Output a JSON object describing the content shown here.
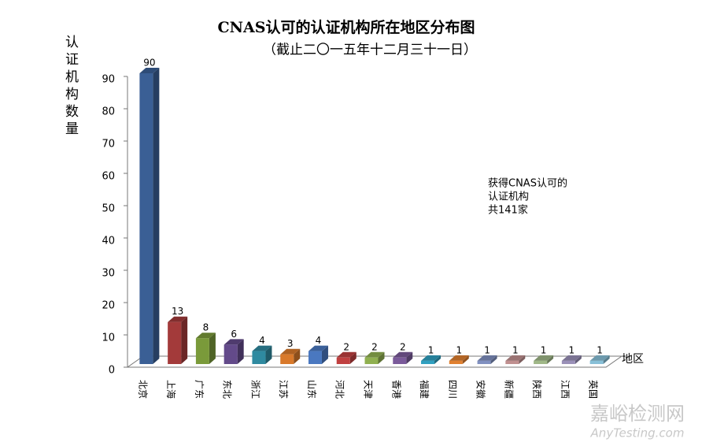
{
  "chart_data": {
    "type": "bar3d",
    "title": "CNAS认可的认证机构所在地区分布图",
    "subtitle": "（截止二〇一五年十二月三十一日）",
    "y_label": "认证机构数量",
    "x_label": "地区",
    "annotation": [
      "获得CNAS认可的",
      "认证机构",
      "共141家"
    ],
    "watermark": [
      "嘉峪检测网",
      "AnyTesting.com"
    ],
    "categories": [
      "北京",
      "上海",
      "广东",
      "东北",
      "浙江",
      "江苏",
      "山东",
      "河北",
      "天津",
      "香港",
      "福建",
      "四川",
      "安徽",
      "新疆",
      "陕西",
      "江西",
      "英国"
    ],
    "values": [
      90,
      13,
      8,
      6,
      4,
      3,
      4,
      2,
      2,
      2,
      1,
      1,
      1,
      1,
      1,
      1,
      1
    ],
    "colors": [
      "#3a5f95",
      "#a33a3a",
      "#7a9a3a",
      "#634a8a",
      "#2f8aa0",
      "#d9792a",
      "#4a78c0",
      "#c04040",
      "#90b050",
      "#7a5a9a",
      "#30a0c0",
      "#e08030",
      "#8090c0",
      "#c09090",
      "#a0b888",
      "#9a90b8",
      "#88c0d8"
    ],
    "ylim": [
      0,
      90
    ],
    "yticks": [
      0,
      10,
      20,
      30,
      40,
      50,
      60,
      70,
      80,
      90
    ],
    "grid": false
  }
}
